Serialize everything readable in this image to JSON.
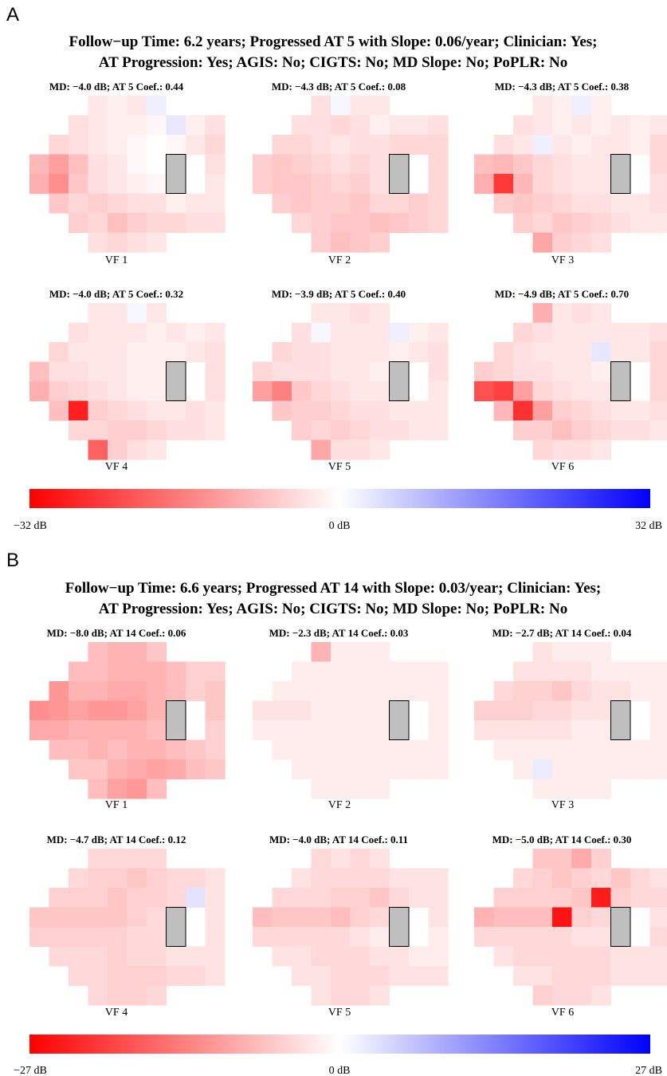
{
  "colors": {
    "neg": "#ff0000",
    "zero": "#ffffff",
    "pos": "#0000ff",
    "blindspot": "#bfbfbf"
  },
  "panels": [
    {
      "letter": "A",
      "title_line1": "Follow−up Time: 6.2 years; Progressed AT 5 with Slope: 0.06/year; Clinician: Yes;",
      "title_line2": "AT Progression: Yes; AGIS: No; CIGTS: No; MD Slope: No; PoPLR: No",
      "scale": {
        "min": -32,
        "max": 32,
        "min_label": "−32 dB",
        "mid_label": "0 dB",
        "max_label": "32 dB"
      },
      "maps": [
        {
          "header": "MD: −4.0 dB; AT 5 Coef.: 0.44",
          "caption": "VF 1",
          "rows": [
            [
              -3,
              -2,
              -3,
              2
            ],
            [
              -4,
              -3,
              -2,
              -2,
              -1,
              3,
              -2,
              -4
            ],
            [
              -5,
              -4,
              -3,
              -2,
              -1,
              0,
              -1,
              -3,
              -5
            ],
            [
              -9,
              -12,
              -8,
              -4,
              -3,
              -1,
              0,
              -2,
              null,
              -4
            ],
            [
              -10,
              -14,
              -7,
              -4,
              -3,
              -2,
              -1,
              -2,
              null,
              -3
            ],
            [
              -7,
              -5,
              -6,
              -5,
              -4,
              -4,
              -2,
              -3,
              -3
            ],
            [
              -6,
              -5,
              -8,
              -6,
              -5,
              -5,
              -4,
              -4
            ],
            [
              -4,
              -5,
              -4,
              -3
            ]
          ]
        },
        {
          "header": "MD: −4.3 dB; AT 5 Coef.: 0.08",
          "caption": "VF 2",
          "rows": [
            [
              -4,
              1,
              -3,
              -3
            ],
            [
              -4,
              -4,
              -5,
              -4,
              -2,
              -3,
              -3,
              -4
            ],
            [
              -5,
              -5,
              -4,
              -3,
              -4,
              -4,
              -5,
              -5,
              -5
            ],
            [
              -6,
              -7,
              -6,
              -5,
              -4,
              -5,
              -4,
              -4,
              null,
              -5
            ],
            [
              -6,
              -7,
              -7,
              -6,
              -5,
              -6,
              -4,
              -5,
              null,
              -5
            ],
            [
              -6,
              -7,
              -6,
              -6,
              -7,
              -5,
              -5,
              -6,
              -5
            ],
            [
              -5,
              -6,
              -7,
              -7,
              -8,
              -7,
              -6,
              -5
            ],
            [
              -6,
              -8,
              -7,
              -6
            ]
          ]
        },
        {
          "header": "MD: −4.3 dB; AT 5 Coef.: 0.38",
          "caption": "VF 3",
          "rows": [
            [
              -3,
              -2,
              2,
              -2
            ],
            [
              -4,
              -3,
              -2,
              -3,
              -2,
              -3,
              -2,
              -3
            ],
            [
              -4,
              -3,
              2,
              -3,
              -2,
              -3,
              -3,
              -2,
              -5
            ],
            [
              -8,
              -9,
              -7,
              -5,
              -4,
              -3,
              -3,
              -3,
              null,
              -5
            ],
            [
              -10,
              -25,
              -9,
              -5,
              -4,
              -3,
              -3,
              -4,
              null,
              -4
            ],
            [
              -6,
              -7,
              -6,
              -5,
              -4,
              -4,
              -3,
              -3,
              -4
            ],
            [
              -6,
              -5,
              -7,
              -6,
              -5,
              -4,
              -3,
              -3
            ],
            [
              -11,
              -6,
              -5,
              -4
            ]
          ]
        },
        {
          "header": "MD: −4.0 dB; AT 5 Coef.: 0.32",
          "caption": "VF 4",
          "rows": [
            [
              -3,
              -3,
              1,
              -3
            ],
            [
              -4,
              -3,
              -3,
              -3,
              -2,
              -3,
              -2,
              -3
            ],
            [
              -5,
              -3,
              -3,
              -3,
              -2,
              -2,
              -2,
              -3,
              -4
            ],
            [
              -8,
              -4,
              -4,
              -3,
              -3,
              -2,
              -2,
              -3,
              null,
              -4
            ],
            [
              -10,
              -6,
              -5,
              -4,
              -3,
              -2,
              -2,
              -2,
              null,
              -4
            ],
            [
              -8,
              -28,
              -6,
              -5,
              -4,
              -3,
              -3,
              -4,
              -3
            ],
            [
              -5,
              -5,
              -6,
              -6,
              -5,
              -4,
              -4,
              -3
            ],
            [
              -20,
              -6,
              -4,
              -3
            ]
          ]
        },
        {
          "header": "MD: −3.9 dB; AT 5 Coef.: 0.40",
          "caption": "VF 5",
          "rows": [
            [
              -3,
              -3,
              -4,
              -3
            ],
            [
              -4,
              1,
              -3,
              -3,
              -3,
              2,
              -2,
              -3
            ],
            [
              -5,
              -4,
              -4,
              -3,
              -3,
              -3,
              -2,
              -3,
              -4
            ],
            [
              -5,
              -4,
              -4,
              -4,
              -3,
              -3,
              -2,
              -3,
              null,
              -4
            ],
            [
              -12,
              -16,
              -7,
              -5,
              -4,
              -3,
              -3,
              -3,
              null,
              -3
            ],
            [
              -7,
              -6,
              -6,
              -5,
              -4,
              -4,
              -3,
              -3,
              -3
            ],
            [
              -6,
              -5,
              -6,
              -5,
              -4,
              -4,
              -3,
              -3
            ],
            [
              -11,
              -4,
              -4,
              -3
            ]
          ]
        },
        {
          "header": "MD: −4.9 dB; AT 5 Coef.: 0.70",
          "caption": "VF 6",
          "rows": [
            [
              -10,
              -3,
              -4,
              -3
            ],
            [
              -5,
              -4,
              -3,
              -3,
              -3,
              -3,
              -3,
              -4
            ],
            [
              -5,
              -4,
              -3,
              -3,
              -3,
              3,
              -3,
              -3,
              -5
            ],
            [
              -6,
              -5,
              -4,
              -4,
              -3,
              -3,
              -2,
              -3,
              null,
              -5
            ],
            [
              -22,
              -24,
              -12,
              -5,
              -4,
              -3,
              -3,
              -2,
              null,
              -5
            ],
            [
              -9,
              -26,
              -12,
              -6,
              -5,
              -4,
              -3,
              -3,
              -4
            ],
            [
              -6,
              -6,
              -8,
              -6,
              -5,
              -4,
              -4,
              -3
            ],
            [
              -5,
              -4,
              -4,
              -3
            ]
          ]
        }
      ]
    },
    {
      "letter": "B",
      "title_line1": "Follow−up Time: 6.6 years; Progressed AT 14 with Slope: 0.03/year; Clinician: Yes;",
      "title_line2": "AT Progression: Yes; AGIS: No; CIGTS: No; MD Slope: No; PoPLR: No",
      "scale": {
        "min": -27,
        "max": 27,
        "min_label": "−27 dB",
        "mid_label": "0 dB",
        "max_label": "27 dB"
      },
      "maps": [
        {
          "header": "MD: −8.0 dB; AT 14 Coef.: 0.06",
          "caption": "VF 1",
          "rows": [
            [
              -7,
              -8,
              -8,
              -6
            ],
            [
              -7,
              -7,
              -8,
              -8,
              -8,
              -7,
              -5,
              -5
            ],
            [
              -11,
              -8,
              -8,
              -9,
              -9,
              -8,
              -7,
              -5,
              -6
            ],
            [
              -12,
              -11,
              -10,
              -11,
              -11,
              -10,
              -8,
              -7,
              null,
              -6
            ],
            [
              -9,
              -9,
              -8,
              -8,
              -8,
              -8,
              -7,
              -6,
              null,
              -5
            ],
            [
              -7,
              -7,
              -8,
              -7,
              -8,
              -8,
              -7,
              -6,
              -5
            ],
            [
              -6,
              -6,
              -8,
              -9,
              -10,
              -9,
              -7,
              -6
            ],
            [
              -7,
              -10,
              -11,
              -7
            ]
          ]
        },
        {
          "header": "MD: −2.3 dB; AT 14 Coef.: 0.03",
          "caption": "VF 2",
          "rows": [
            [
              -8,
              -2,
              -2,
              -2
            ],
            [
              -2,
              -2,
              -2,
              -2,
              -2,
              -2,
              -2,
              -2
            ],
            [
              -2,
              -2,
              -2,
              -2,
              -2,
              -2,
              -2,
              -2,
              -2
            ],
            [
              -3,
              -3,
              -3,
              -2,
              -2,
              -2,
              -2,
              -2,
              null,
              -2
            ],
            [
              -2,
              -2,
              -2,
              -2,
              -2,
              -2,
              -2,
              -2,
              null,
              -2
            ],
            [
              -2,
              -2,
              -2,
              -2,
              -2,
              -2,
              -2,
              -2,
              -2
            ],
            [
              -2,
              -2,
              -2,
              -2,
              -2,
              -2,
              -2,
              -2
            ],
            [
              -2,
              -2,
              -2,
              -2
            ]
          ]
        },
        {
          "header": "MD: −2.7 dB; AT 14 Coef.: 0.04",
          "caption": "VF 3",
          "rows": [
            [
              -3,
              -2,
              -2,
              -2
            ],
            [
              -3,
              -3,
              -3,
              -3,
              -2,
              -2,
              -2,
              -2
            ],
            [
              -4,
              -5,
              -5,
              -6,
              -4,
              -3,
              -3,
              -2,
              -2
            ],
            [
              -5,
              -5,
              -5,
              -4,
              -4,
              -3,
              -3,
              -3,
              null,
              -2
            ],
            [
              -3,
              -3,
              -3,
              -3,
              -3,
              -2,
              -2,
              -2,
              null,
              -2
            ],
            [
              -2,
              -2,
              -2,
              -2,
              -2,
              -2,
              -2,
              -2,
              -2
            ],
            [
              -2,
              2,
              -2,
              -2,
              -2,
              -2,
              -2,
              -2
            ],
            [
              -2,
              -2,
              -2,
              -2
            ]
          ]
        },
        {
          "header": "MD: −4.7 dB; AT 14 Coef.: 0.12",
          "caption": "VF 4",
          "rows": [
            [
              -4,
              -4,
              -4,
              -4
            ],
            [
              -4,
              -5,
              -5,
              -6,
              -5,
              -4,
              -4,
              -3
            ],
            [
              -5,
              -5,
              -5,
              -6,
              -5,
              -5,
              -4,
              3,
              -3
            ],
            [
              -6,
              -6,
              -6,
              -6,
              -6,
              -5,
              -4,
              -3,
              null,
              -3
            ],
            [
              -5,
              -5,
              -5,
              -5,
              -5,
              -4,
              -4,
              -3,
              null,
              -3
            ],
            [
              -4,
              -4,
              -4,
              -5,
              -4,
              -4,
              -3,
              -3,
              -3
            ],
            [
              -4,
              -4,
              -5,
              -5,
              -5,
              -4,
              -4,
              -3
            ],
            [
              -4,
              -5,
              -5,
              -4
            ]
          ]
        },
        {
          "header": "MD: −4.0 dB; AT 14 Coef.: 0.11",
          "caption": "VF 5",
          "rows": [
            [
              -4,
              -3,
              -4,
              -3
            ],
            [
              -3,
              -4,
              -4,
              -4,
              -4,
              -3,
              -3,
              -3
            ],
            [
              -4,
              -4,
              -4,
              -5,
              -5,
              -6,
              -4,
              -3,
              -3
            ],
            [
              -7,
              -6,
              -6,
              -6,
              -7,
              -5,
              -4,
              -3,
              null,
              -3
            ],
            [
              -4,
              -4,
              -4,
              -4,
              -4,
              -3,
              -2,
              -2,
              null,
              -2
            ],
            [
              -3,
              -3,
              -4,
              -4,
              -4,
              -3,
              -3,
              -2,
              -2
            ],
            [
              -3,
              -3,
              -4,
              -4,
              -4,
              -3,
              -3,
              -3
            ],
            [
              -3,
              -4,
              -4,
              -3
            ]
          ]
        },
        {
          "header": "MD: −5.0 dB; AT 14 Coef.: 0.30",
          "caption": "VF 6",
          "rows": [
            [
              -6,
              -6,
              -9,
              -5
            ],
            [
              -4,
              -5,
              -6,
              -5,
              -4,
              -6,
              -4,
              -3
            ],
            [
              -5,
              -5,
              -5,
              -5,
              -6,
              -24,
              -5,
              -4,
              -4
            ],
            [
              -8,
              -7,
              -7,
              -7,
              -25,
              -5,
              -4,
              -3,
              null,
              -3
            ],
            [
              -4,
              -4,
              -4,
              -4,
              -4,
              -3,
              -3,
              -3,
              null,
              -4
            ],
            [
              -3,
              -4,
              -4,
              -4,
              -4,
              -4,
              -3,
              -3,
              -3
            ],
            [
              -3,
              -3,
              -4,
              -4,
              -4,
              -3,
              -3,
              -3
            ],
            [
              -5,
              -4,
              -4,
              -3
            ]
          ]
        }
      ]
    }
  ]
}
